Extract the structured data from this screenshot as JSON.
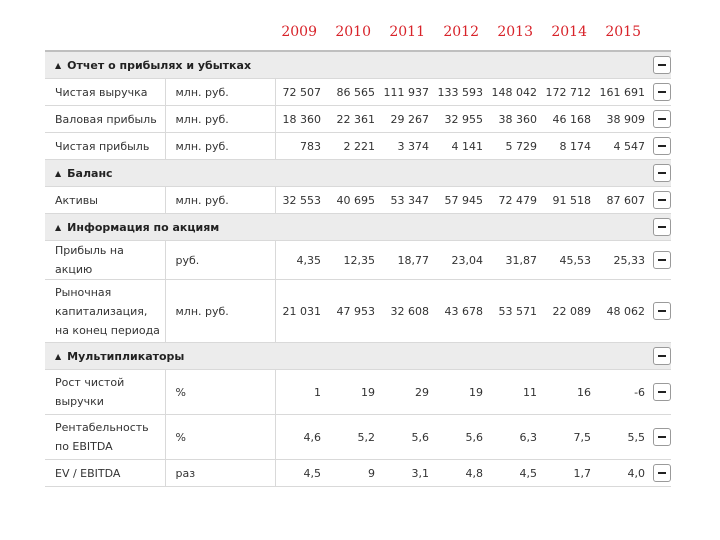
{
  "years": [
    "2009",
    "2010",
    "2011",
    "2012",
    "2013",
    "2014",
    "2015"
  ],
  "sections": [
    {
      "title": "Отчет о прибылях и убытках",
      "rows": [
        {
          "name": "Чистая выручка",
          "unit": "млн. руб.",
          "values": [
            "72 507",
            "86 565",
            "111 937",
            "133 593",
            "148 042",
            "172 712",
            "161 691"
          ]
        },
        {
          "name": "Валовая прибыль",
          "unit": "млн. руб.",
          "values": [
            "18 360",
            "22 361",
            "29 267",
            "32 955",
            "38 360",
            "46 168",
            "38 909"
          ]
        },
        {
          "name": "Чистая прибыль",
          "unit": "млн. руб.",
          "values": [
            "783",
            "2 221",
            "3 374",
            "4 141",
            "5 729",
            "8 174",
            "4 547"
          ]
        }
      ]
    },
    {
      "title": "Баланс",
      "rows": [
        {
          "name": "Активы",
          "unit": "млн. руб.",
          "values": [
            "32 553",
            "40 695",
            "53 347",
            "57 945",
            "72 479",
            "91 518",
            "87 607"
          ]
        }
      ]
    },
    {
      "title": "Информация по акциям",
      "rows": [
        {
          "name": "Прибыль на акцию",
          "unit": "руб.",
          "values": [
            "4,35",
            "12,35",
            "18,77",
            "23,04",
            "31,87",
            "45,53",
            "25,33"
          ]
        },
        {
          "name": "Рыночная капитализация, на конец периода",
          "unit": "млн. руб.",
          "values": [
            "21 031",
            "47 953",
            "32 608",
            "43 678",
            "53 571",
            "22 089",
            "48 062"
          ]
        }
      ]
    },
    {
      "title": "Мультипликаторы",
      "rows": [
        {
          "name": "Рост чистой выручки",
          "unit": "%",
          "values": [
            "1",
            "19",
            "29",
            "19",
            "11",
            "16",
            "-6"
          ]
        },
        {
          "name": "Рентабельность по EBITDA",
          "unit": "%",
          "values": [
            "4,6",
            "5,2",
            "5,6",
            "5,6",
            "6,3",
            "7,5",
            "5,5"
          ]
        },
        {
          "name": "EV / EBITDA",
          "unit": "раз",
          "values": [
            "4,5",
            "9",
            "3,1",
            "4,8",
            "4,5",
            "1,7",
            "4,0"
          ]
        }
      ]
    }
  ]
}
